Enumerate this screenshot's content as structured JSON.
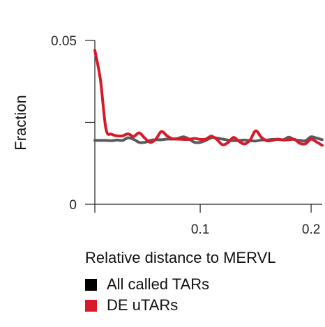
{
  "chart_data": {
    "type": "line",
    "title": "",
    "xlabel": "Relative distance to MERVL",
    "ylabel": "Fraction",
    "xlim": [
      0,
      0.21
    ],
    "ylim": [
      0,
      0.05
    ],
    "x_ticks": [
      "0.1",
      "0.2"
    ],
    "y_ticks": [
      "0",
      "0.05"
    ],
    "grid": false,
    "legend_position": "bottom-left",
    "series": [
      {
        "name": "All called TARs",
        "color": "#5a5a5a",
        "swatch": "#000000",
        "x": [
          0.005,
          0.01,
          0.015,
          0.02,
          0.025,
          0.03,
          0.035,
          0.04,
          0.045,
          0.05,
          0.055,
          0.06,
          0.065,
          0.07,
          0.075,
          0.08,
          0.085,
          0.09,
          0.095,
          0.1,
          0.105,
          0.11,
          0.115,
          0.12,
          0.125,
          0.13,
          0.135,
          0.14,
          0.145,
          0.15,
          0.155,
          0.16,
          0.165,
          0.17,
          0.175,
          0.18,
          0.185,
          0.19,
          0.195,
          0.2,
          0.205,
          0.21
        ],
        "y": [
          0.0195,
          0.0195,
          0.0195,
          0.0194,
          0.0196,
          0.0195,
          0.0203,
          0.0198,
          0.0189,
          0.0189,
          0.0195,
          0.0197,
          0.0197,
          0.0199,
          0.0199,
          0.0201,
          0.0206,
          0.0199,
          0.0189,
          0.0189,
          0.0195,
          0.0203,
          0.0202,
          0.0199,
          0.0196,
          0.0194,
          0.0195,
          0.0196,
          0.0194,
          0.0193,
          0.0196,
          0.0196,
          0.0198,
          0.0198,
          0.0197,
          0.0205,
          0.0197,
          0.0195,
          0.0194,
          0.0206,
          0.0202,
          0.0197
        ]
      },
      {
        "name": "DE uTARs",
        "color": "#d7192a",
        "swatch": "#d7192a",
        "x": [
          0.005,
          0.01,
          0.015,
          0.02,
          0.025,
          0.03,
          0.035,
          0.04,
          0.045,
          0.05,
          0.055,
          0.06,
          0.065,
          0.07,
          0.075,
          0.08,
          0.085,
          0.09,
          0.095,
          0.1,
          0.105,
          0.11,
          0.115,
          0.12,
          0.125,
          0.13,
          0.135,
          0.14,
          0.145,
          0.15,
          0.155,
          0.16,
          0.165,
          0.17,
          0.175,
          0.18,
          0.185,
          0.19,
          0.195,
          0.2,
          0.205,
          0.21
        ],
        "y": [
          0.047,
          0.038,
          0.023,
          0.0214,
          0.0209,
          0.0209,
          0.0215,
          0.0207,
          0.0218,
          0.0202,
          0.0189,
          0.0199,
          0.0222,
          0.0209,
          0.02,
          0.0199,
          0.0198,
          0.0198,
          0.0201,
          0.0198,
          0.0199,
          0.0208,
          0.0198,
          0.0182,
          0.0188,
          0.0204,
          0.0192,
          0.0184,
          0.0196,
          0.0224,
          0.0205,
          0.0194,
          0.0195,
          0.0199,
          0.0196,
          0.0197,
          0.0198,
          0.0186,
          0.0185,
          0.0199,
          0.019,
          0.018
        ]
      }
    ]
  }
}
